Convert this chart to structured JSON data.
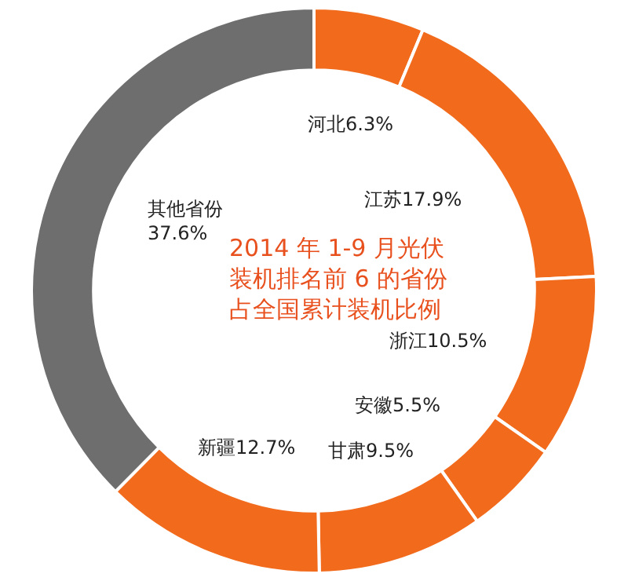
{
  "chart_data": {
    "type": "donut",
    "title": "2014 年 1-9 月光伏装机排名前 6 的省份占全国累计装机比例",
    "categories": [
      "河北",
      "江苏",
      "浙江",
      "安徽",
      "甘肃",
      "新疆",
      "其他省份"
    ],
    "values": [
      6.3,
      17.9,
      10.5,
      5.5,
      9.5,
      12.7,
      37.6
    ],
    "value_labels": [
      "6.3%",
      "17.9%",
      "10.5%",
      "5.5%",
      "9.5%",
      "12.7%",
      "37.6%"
    ],
    "colors": [
      "#f26a1b",
      "#f26a1b",
      "#f26a1b",
      "#f26a1b",
      "#f26a1b",
      "#f26a1b",
      "#6e6e6e"
    ],
    "legend": false
  }
}
